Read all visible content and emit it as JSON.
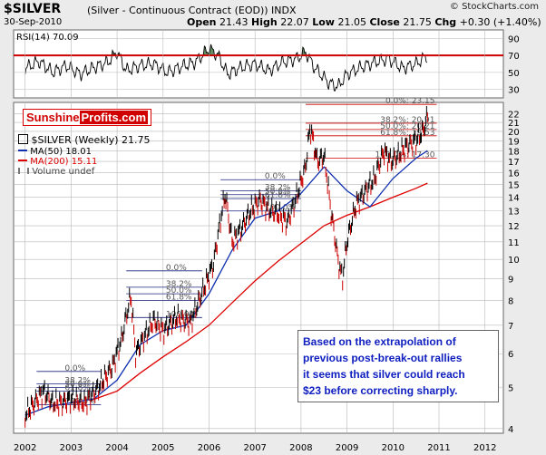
{
  "header": {
    "symbol": "$SILVER",
    "description": "(Silver - Continuous Contract (EOD)) INDX",
    "date": "30-Sep-2010",
    "open_label": "Open",
    "open": "21.43",
    "high_label": "High",
    "high": "22.07",
    "low_label": "Low",
    "low": "21.05",
    "close_label": "Close",
    "close": "21.75",
    "chg_label": "Chg",
    "chg": "+0.30 (+1.40%)",
    "brand": "© StockCharts.com"
  },
  "logo": {
    "part1": "Sunshine",
    "part2": "Profits.com"
  },
  "legend": {
    "price": "$SILVER (Weekly) 21.75",
    "ma50": "MA(50) 18.01",
    "ma200": "MA(200) 15.11",
    "volume": "Volume undef"
  },
  "annotation": {
    "line1": "Based on the extrapolation of",
    "line2": "previous post-break-out rallies",
    "line3": "it seems that silver could reach",
    "line4": "$23 before correcting sharply."
  },
  "colors": {
    "price": "#000000",
    "down": "#cc0000",
    "ma50": "#1030b0",
    "ma200": "#dd0000",
    "fib": "#1a237e",
    "fib_red": "#cc0000",
    "rsi_line": "#000000",
    "rsi_ref": "#cc0000",
    "grid": "#b8b8b8",
    "panel_bg": "#ffffff",
    "rsi_fill": "#4a7a4a"
  },
  "chart_data": [
    {
      "type": "line",
      "title": "RSI(14) 70.09",
      "ylim": [
        20,
        100
      ],
      "y_ticks": [
        30,
        50,
        70,
        90
      ],
      "ref_line": 70,
      "grid": true,
      "x": [
        2002.0,
        2002.3,
        2002.6,
        2002.9,
        2003.2,
        2003.5,
        2003.8,
        2004.0,
        2004.2,
        2004.5,
        2004.8,
        2005.1,
        2005.4,
        2005.7,
        2006.0,
        2006.2,
        2006.4,
        2006.7,
        2007.0,
        2007.3,
        2007.6,
        2007.9,
        2008.1,
        2008.3,
        2008.6,
        2008.8,
        2009.0,
        2009.3,
        2009.6,
        2009.9,
        2010.2,
        2010.5,
        2010.75
      ],
      "values": [
        55,
        63,
        50,
        58,
        48,
        56,
        62,
        74,
        52,
        58,
        60,
        50,
        57,
        62,
        78,
        70,
        48,
        56,
        60,
        52,
        62,
        66,
        74,
        55,
        38,
        33,
        48,
        56,
        62,
        66,
        55,
        60,
        70
      ]
    },
    {
      "type": "line",
      "title": "$SILVER (Weekly) 21.75",
      "x_ticks": [
        "2002",
        "2003",
        "2004",
        "2005",
        "2006",
        "2007",
        "2008",
        "2009",
        "2010",
        "2011",
        "2012"
      ],
      "y_ticks": [
        4,
        5,
        6,
        7,
        8,
        9,
        10,
        11,
        12,
        13,
        14,
        15,
        16,
        17,
        18,
        19,
        20,
        21,
        22
      ],
      "ylim": [
        3.9,
        23.4
      ],
      "y_scale": "log",
      "grid": true,
      "series": [
        {
          "name": "$SILVER (Weekly) 21.75",
          "x": [
            2002.0,
            2002.2,
            2002.4,
            2002.6,
            2002.8,
            2003.0,
            2003.3,
            2003.6,
            2003.9,
            2004.1,
            2004.3,
            2004.4,
            2004.6,
            2004.8,
            2005.0,
            2005.3,
            2005.6,
            2005.9,
            2006.1,
            2006.2,
            2006.35,
            2006.5,
            2006.7,
            2006.9,
            2007.1,
            2007.3,
            2007.5,
            2007.7,
            2007.9,
            2008.1,
            2008.2,
            2008.35,
            2008.5,
            2008.65,
            2008.8,
            2008.9,
            2009.0,
            2009.2,
            2009.4,
            2009.6,
            2009.8,
            2009.95,
            2010.1,
            2010.3,
            2010.5,
            2010.65,
            2010.75
          ],
          "values": [
            4.3,
            4.6,
            4.9,
            4.6,
            4.6,
            4.7,
            4.6,
            5.0,
            5.6,
            6.5,
            8.2,
            6.0,
            6.6,
            7.2,
            6.8,
            7.3,
            7.1,
            8.6,
            9.8,
            11.5,
            14.2,
            11.0,
            11.8,
            13.0,
            13.8,
            13.1,
            12.8,
            12.2,
            14.0,
            16.5,
            20.5,
            17.0,
            17.5,
            13.0,
            10.0,
            9.0,
            11.0,
            13.5,
            14.5,
            15.5,
            18.0,
            17.0,
            17.5,
            18.5,
            19.0,
            20.0,
            21.75
          ]
        },
        {
          "name": "MA(50) 18.01",
          "x": [
            2002.0,
            2002.5,
            2003.0,
            2003.5,
            2004.0,
            2004.5,
            2005.0,
            2005.5,
            2006.0,
            2006.5,
            2007.0,
            2007.5,
            2008.0,
            2008.5,
            2009.0,
            2009.5,
            2010.0,
            2010.5,
            2010.75
          ],
          "values": [
            4.3,
            4.5,
            4.6,
            4.7,
            5.2,
            6.3,
            6.8,
            7.0,
            8.3,
            10.5,
            12.5,
            13.0,
            14.3,
            16.5,
            14.5,
            13.3,
            15.5,
            17.3,
            18.01
          ]
        },
        {
          "name": "MA(200) 15.11",
          "x": [
            2003.4,
            2004.0,
            2004.5,
            2005.0,
            2005.5,
            2006.0,
            2006.5,
            2007.0,
            2007.5,
            2008.0,
            2008.5,
            2009.0,
            2009.5,
            2010.0,
            2010.5,
            2010.75
          ],
          "values": [
            4.65,
            4.9,
            5.4,
            5.9,
            6.4,
            7.0,
            7.9,
            8.9,
            9.9,
            10.9,
            12.0,
            12.7,
            13.3,
            14.0,
            14.7,
            15.11
          ]
        }
      ],
      "fib_sets": [
        {
          "x_start": 2002.25,
          "x_end": 2003.65,
          "levels": [
            "0.0%",
            "38.2%",
            "50.0%",
            "61.8%",
            "100.0%"
          ],
          "values": [
            5.45,
            5.1,
            5.0,
            4.9,
            4.55
          ],
          "color": "#1a237e"
        },
        {
          "x_start": 2004.2,
          "x_end": 2005.85,
          "levels": [
            "0.0%",
            "38.2%",
            "50.0%",
            "61.8%",
            "100.0%"
          ],
          "values": [
            9.4,
            8.6,
            8.3,
            8.0,
            7.3
          ],
          "color": "#1a237e"
        },
        {
          "x_start": 2006.25,
          "x_end": 2008.0,
          "levels": [
            "0.0%",
            "38.2%",
            "50.0%",
            "61.8%",
            "100.0%"
          ],
          "values": [
            15.4,
            14.5,
            14.2,
            13.9,
            13.0
          ],
          "color": "#1a237e"
        },
        {
          "x_start": 2008.1,
          "x_end": 2010.95,
          "levels": [
            "0.0%: 23.15",
            "38.2%: 20.91",
            "50.0%: 20.21",
            "61.8%: 19.53",
            "100.0%: 17.30"
          ],
          "values": [
            23.15,
            20.91,
            20.21,
            19.53,
            17.3
          ],
          "color": "#cc0000"
        }
      ]
    }
  ]
}
